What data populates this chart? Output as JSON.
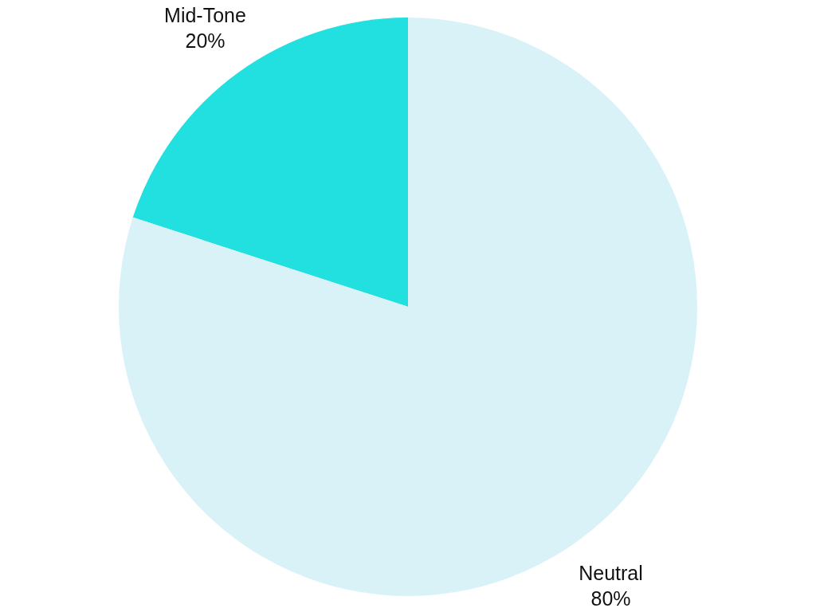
{
  "chart_data": {
    "type": "pie",
    "categories": [
      "Mid-Tone",
      "Neutral"
    ],
    "values": [
      20,
      80
    ],
    "colors": [
      "#22e0e0",
      "#d9f2f8"
    ],
    "value_labels": [
      "20%",
      "80%"
    ]
  }
}
